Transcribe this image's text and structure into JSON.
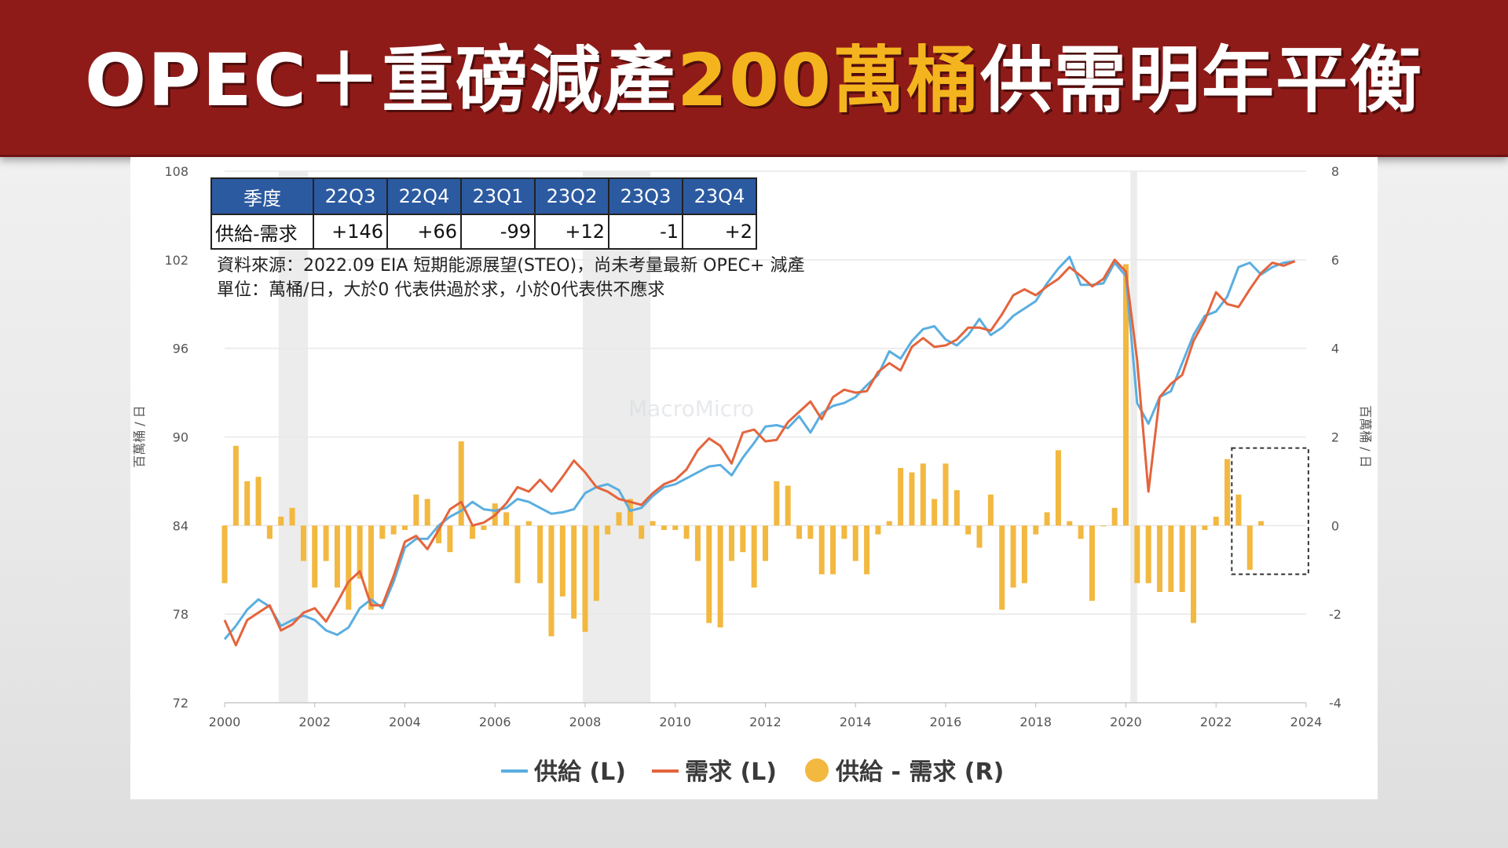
{
  "title": {
    "part1": "OPEC＋重磅減產",
    "highlight": "200萬桶",
    "part2": "供需明年平衡"
  },
  "colors": {
    "banner": "#8f1b18",
    "highlight": "#f4b41e",
    "supply": "#5aaee0",
    "demand": "#e4643c",
    "balance": "#f2b840",
    "table_header": "#2c5aa0"
  },
  "table": {
    "headers": [
      "季度",
      "22Q3",
      "22Q4",
      "23Q1",
      "23Q2",
      "23Q3",
      "23Q4"
    ],
    "row_label": "供給-需求",
    "values": [
      "+146",
      "+66",
      "-99",
      "+12",
      "-1",
      "+2"
    ]
  },
  "notes": {
    "source": "資料來源：2022.09 EIA 短期能源展望(STEO)，尚未考量最新 OPEC+ 減產",
    "unit": "單位：萬桶/日，大於0 代表供過於求，小於0代表供不應求"
  },
  "chart_data": {
    "type": "line+bar",
    "x_range": [
      2000,
      2024
    ],
    "x_ticks": [
      "2000",
      "2002",
      "2004",
      "2006",
      "2008",
      "2010",
      "2012",
      "2014",
      "2016",
      "2018",
      "2020",
      "2022",
      "2024"
    ],
    "y_left": {
      "label": "百萬桶 / 日",
      "range": [
        72,
        108
      ],
      "ticks": [
        "72",
        "78",
        "84",
        "90",
        "96",
        "102",
        "108"
      ]
    },
    "y_right": {
      "label": "百萬桶 / 日",
      "range": [
        -4,
        8
      ],
      "ticks": [
        "-4",
        "-2",
        "0",
        "2",
        "4",
        "6",
        "8"
      ]
    },
    "recession_shading": [
      [
        2001.2,
        2001.85
      ],
      [
        2007.95,
        2009.45
      ],
      [
        2020.1,
        2020.25
      ]
    ],
    "highlight_box": [
      2022.35,
      2024.05
    ],
    "legend": [
      "供給 (L)",
      "需求 (L)",
      "供給 - 需求 (R)"
    ],
    "series": [
      {
        "name": "供給 (L)",
        "axis": "left",
        "points": [
          [
            2000,
            76.3
          ],
          [
            2000.25,
            77.2
          ],
          [
            2000.5,
            78.3
          ],
          [
            2000.75,
            79
          ],
          [
            2001,
            78.5
          ],
          [
            2001.25,
            77.2
          ],
          [
            2001.5,
            77.6
          ],
          [
            2001.75,
            77.9
          ],
          [
            2002,
            77.6
          ],
          [
            2002.25,
            76.9
          ],
          [
            2002.5,
            76.6
          ],
          [
            2002.75,
            77.1
          ],
          [
            2003,
            78.4
          ],
          [
            2003.25,
            79
          ],
          [
            2003.5,
            78.4
          ],
          [
            2003.75,
            80.2
          ],
          [
            2004,
            82.5
          ],
          [
            2004.25,
            83.1
          ],
          [
            2004.5,
            83.1
          ],
          [
            2004.75,
            84
          ],
          [
            2005,
            84.6
          ],
          [
            2005.25,
            85
          ],
          [
            2005.5,
            85.6
          ],
          [
            2005.75,
            85.1
          ],
          [
            2006,
            85
          ],
          [
            2006.25,
            85.2
          ],
          [
            2006.5,
            85.8
          ],
          [
            2006.75,
            85.6
          ],
          [
            2007,
            85.2
          ],
          [
            2007.25,
            84.8
          ],
          [
            2007.5,
            84.9
          ],
          [
            2007.75,
            85.1
          ],
          [
            2008,
            86.2
          ],
          [
            2008.25,
            86.6
          ],
          [
            2008.5,
            86.8
          ],
          [
            2008.75,
            86.4
          ],
          [
            2009,
            85
          ],
          [
            2009.25,
            85.2
          ],
          [
            2009.5,
            86
          ],
          [
            2009.75,
            86.6
          ],
          [
            2010,
            86.8
          ],
          [
            2010.25,
            87.2
          ],
          [
            2010.5,
            87.6
          ],
          [
            2010.75,
            88
          ],
          [
            2011,
            88.1
          ],
          [
            2011.25,
            87.4
          ],
          [
            2011.5,
            88.6
          ],
          [
            2011.75,
            89.6
          ],
          [
            2012,
            90.7
          ],
          [
            2012.25,
            90.8
          ],
          [
            2012.5,
            90.6
          ],
          [
            2012.75,
            91.4
          ],
          [
            2013,
            90.3
          ],
          [
            2013.25,
            91.6
          ],
          [
            2013.5,
            92.1
          ],
          [
            2013.75,
            92.3
          ],
          [
            2014,
            92.7
          ],
          [
            2014.25,
            93.5
          ],
          [
            2014.5,
            94.2
          ],
          [
            2014.75,
            95.8
          ],
          [
            2015,
            95.3
          ],
          [
            2015.25,
            96.5
          ],
          [
            2015.5,
            97.3
          ],
          [
            2015.75,
            97.5
          ],
          [
            2016,
            96.6
          ],
          [
            2016.25,
            96.2
          ],
          [
            2016.5,
            96.9
          ],
          [
            2016.75,
            98
          ],
          [
            2017,
            96.9
          ],
          [
            2017.25,
            97.4
          ],
          [
            2017.5,
            98.2
          ],
          [
            2017.75,
            98.7
          ],
          [
            2018,
            99.2
          ],
          [
            2018.25,
            100.4
          ],
          [
            2018.5,
            101.4
          ],
          [
            2018.75,
            102.2
          ],
          [
            2019,
            100.3
          ],
          [
            2019.25,
            100.3
          ],
          [
            2019.5,
            100.4
          ],
          [
            2019.75,
            101.8
          ],
          [
            2020,
            100.9
          ],
          [
            2020.25,
            92.3
          ],
          [
            2020.5,
            90.9
          ],
          [
            2020.75,
            92.7
          ],
          [
            2021,
            93.1
          ],
          [
            2021.25,
            95
          ],
          [
            2021.5,
            96.9
          ],
          [
            2021.75,
            98.2
          ],
          [
            2022,
            98.5
          ],
          [
            2022.25,
            99.5
          ],
          [
            2022.5,
            101.5
          ],
          [
            2022.75,
            101.8
          ],
          [
            2023,
            101
          ],
          [
            2023.25,
            101.5
          ],
          [
            2023.5,
            101.8
          ],
          [
            2023.75,
            101.9
          ]
        ]
      },
      {
        "name": "需求 (L)",
        "axis": "left",
        "points": [
          [
            2000,
            77.6
          ],
          [
            2000.25,
            75.9
          ],
          [
            2000.5,
            77.6
          ],
          [
            2000.75,
            78.1
          ],
          [
            2001,
            78.6
          ],
          [
            2001.25,
            76.9
          ],
          [
            2001.5,
            77.3
          ],
          [
            2001.75,
            78.1
          ],
          [
            2002,
            78.4
          ],
          [
            2002.25,
            77.5
          ],
          [
            2002.5,
            78.8
          ],
          [
            2002.75,
            80.2
          ],
          [
            2003,
            80.9
          ],
          [
            2003.25,
            78.6
          ],
          [
            2003.5,
            78.6
          ],
          [
            2003.75,
            80.6
          ],
          [
            2004,
            82.9
          ],
          [
            2004.25,
            83.3
          ],
          [
            2004.5,
            82.4
          ],
          [
            2004.75,
            83.7
          ],
          [
            2005,
            85.1
          ],
          [
            2005.25,
            85.6
          ],
          [
            2005.5,
            84
          ],
          [
            2005.75,
            84.2
          ],
          [
            2006,
            84.7
          ],
          [
            2006.25,
            85.5
          ],
          [
            2006.5,
            86.6
          ],
          [
            2006.75,
            86.3
          ],
          [
            2007,
            87.1
          ],
          [
            2007.25,
            86.3
          ],
          [
            2007.5,
            87.3
          ],
          [
            2007.75,
            88.4
          ],
          [
            2008,
            87.6
          ],
          [
            2008.25,
            86.6
          ],
          [
            2008.5,
            86.3
          ],
          [
            2008.75,
            85.8
          ],
          [
            2009,
            85.6
          ],
          [
            2009.25,
            85.4
          ],
          [
            2009.5,
            86.2
          ],
          [
            2009.75,
            86.8
          ],
          [
            2010,
            87.1
          ],
          [
            2010.25,
            87.8
          ],
          [
            2010.5,
            89.1
          ],
          [
            2010.75,
            89.9
          ],
          [
            2011,
            89.4
          ],
          [
            2011.25,
            88.2
          ],
          [
            2011.5,
            90.3
          ],
          [
            2011.75,
            90.5
          ],
          [
            2012,
            89.7
          ],
          [
            2012.25,
            89.8
          ],
          [
            2012.5,
            91
          ],
          [
            2012.75,
            91.7
          ],
          [
            2013,
            92.4
          ],
          [
            2013.25,
            91.2
          ],
          [
            2013.5,
            92.7
          ],
          [
            2013.75,
            93.2
          ],
          [
            2014,
            93
          ],
          [
            2014.25,
            93.1
          ],
          [
            2014.5,
            94.4
          ],
          [
            2014.75,
            95
          ],
          [
            2015,
            94.5
          ],
          [
            2015.25,
            96.1
          ],
          [
            2015.5,
            96.7
          ],
          [
            2015.75,
            96.1
          ],
          [
            2016,
            96.2
          ],
          [
            2016.25,
            96.6
          ],
          [
            2016.5,
            97.4
          ],
          [
            2016.75,
            97.4
          ],
          [
            2017,
            97.2
          ],
          [
            2017.25,
            98.3
          ],
          [
            2017.5,
            99.6
          ],
          [
            2017.75,
            100
          ],
          [
            2018,
            99.6
          ],
          [
            2018.25,
            100.2
          ],
          [
            2018.5,
            100.7
          ],
          [
            2018.75,
            101.5
          ],
          [
            2019,
            100.9
          ],
          [
            2019.25,
            100.2
          ],
          [
            2019.5,
            100.7
          ],
          [
            2019.75,
            102
          ],
          [
            2020,
            101.2
          ],
          [
            2020.25,
            95.2
          ],
          [
            2020.5,
            86.3
          ],
          [
            2020.75,
            92.7
          ],
          [
            2021,
            93.6
          ],
          [
            2021.25,
            94.2
          ],
          [
            2021.5,
            96.5
          ],
          [
            2021.75,
            97.9
          ],
          [
            2022,
            99.8
          ],
          [
            2022.25,
            99
          ],
          [
            2022.5,
            98.8
          ],
          [
            2022.75,
            100
          ],
          [
            2023,
            101.1
          ],
          [
            2023.25,
            101.8
          ],
          [
            2023.5,
            101.6
          ],
          [
            2023.75,
            101.9
          ]
        ]
      },
      {
        "name": "供給 - 需求 (R)",
        "axis": "right",
        "points": [
          [
            2000,
            -1.3
          ],
          [
            2000.25,
            1.8
          ],
          [
            2000.5,
            1
          ],
          [
            2000.75,
            1.1
          ],
          [
            2001,
            -0.3
          ],
          [
            2001.25,
            0.2
          ],
          [
            2001.5,
            0.4
          ],
          [
            2001.75,
            -0.8
          ],
          [
            2002,
            -1.4
          ],
          [
            2002.25,
            -0.8
          ],
          [
            2002.5,
            -1.4
          ],
          [
            2002.75,
            -1.9
          ],
          [
            2003,
            -1.2
          ],
          [
            2003.25,
            -1.9
          ],
          [
            2003.5,
            -0.3
          ],
          [
            2003.75,
            -0.2
          ],
          [
            2004,
            -0.1
          ],
          [
            2004.25,
            0.7
          ],
          [
            2004.5,
            0.6
          ],
          [
            2004.75,
            -0.4
          ],
          [
            2005,
            -0.6
          ],
          [
            2005.25,
            1.9
          ],
          [
            2005.5,
            -0.3
          ],
          [
            2005.75,
            -0.1
          ],
          [
            2006,
            0.5
          ],
          [
            2006.25,
            0.3
          ],
          [
            2006.5,
            -1.3
          ],
          [
            2006.75,
            0.1
          ],
          [
            2007,
            -1.3
          ],
          [
            2007.25,
            -2.5
          ],
          [
            2007.5,
            -1.6
          ],
          [
            2007.75,
            -2.1
          ],
          [
            2008,
            -2.4
          ],
          [
            2008.25,
            -1.7
          ],
          [
            2008.5,
            -0.2
          ],
          [
            2008.75,
            0.3
          ],
          [
            2009,
            0.6
          ],
          [
            2009.25,
            -0.3
          ],
          [
            2009.5,
            0.1
          ],
          [
            2009.75,
            -0.1
          ],
          [
            2010,
            -0.1
          ],
          [
            2010.25,
            -0.3
          ],
          [
            2010.5,
            -0.8
          ],
          [
            2010.75,
            -2.2
          ],
          [
            2011,
            -2.3
          ],
          [
            2011.25,
            -0.8
          ],
          [
            2011.5,
            -0.6
          ],
          [
            2011.75,
            -1.4
          ],
          [
            2012,
            -0.8
          ],
          [
            2012.25,
            1
          ],
          [
            2012.5,
            0.9
          ],
          [
            2012.75,
            -0.3
          ],
          [
            2013,
            -0.3
          ],
          [
            2013.25,
            -1.1
          ],
          [
            2013.5,
            -1.1
          ],
          [
            2013.75,
            -0.3
          ],
          [
            2014,
            -0.8
          ],
          [
            2014.25,
            -1.1
          ],
          [
            2014.5,
            -0.2
          ],
          [
            2014.75,
            0.1
          ],
          [
            2015,
            1.3
          ],
          [
            2015.25,
            1.2
          ],
          [
            2015.5,
            1.4
          ],
          [
            2015.75,
            0.6
          ],
          [
            2016,
            1.4
          ],
          [
            2016.25,
            0.8
          ],
          [
            2016.5,
            -0.2
          ],
          [
            2016.75,
            -0.5
          ],
          [
            2017,
            0.7
          ],
          [
            2017.25,
            -1.9
          ],
          [
            2017.5,
            -1.4
          ],
          [
            2017.75,
            -1.3
          ],
          [
            2018,
            -0.2
          ],
          [
            2018.25,
            0.3
          ],
          [
            2018.5,
            1.7
          ],
          [
            2018.75,
            0.1
          ],
          [
            2019,
            -0.3
          ],
          [
            2019.25,
            -1.7
          ],
          [
            2019.5,
            0
          ],
          [
            2019.75,
            0.4
          ],
          [
            2020,
            5.9
          ],
          [
            2020.25,
            -1.3
          ],
          [
            2020.5,
            -1.3
          ],
          [
            2020.75,
            -1.5
          ],
          [
            2021,
            -1.5
          ],
          [
            2021.25,
            -1.5
          ],
          [
            2021.5,
            -2.2
          ],
          [
            2021.75,
            -0.1
          ],
          [
            2022,
            0.2
          ],
          [
            2022.25,
            1.5
          ],
          [
            2022.5,
            0.7
          ],
          [
            2022.75,
            -1
          ],
          [
            2023,
            0.1
          ]
        ]
      }
    ]
  },
  "watermark": "MacroMicro"
}
